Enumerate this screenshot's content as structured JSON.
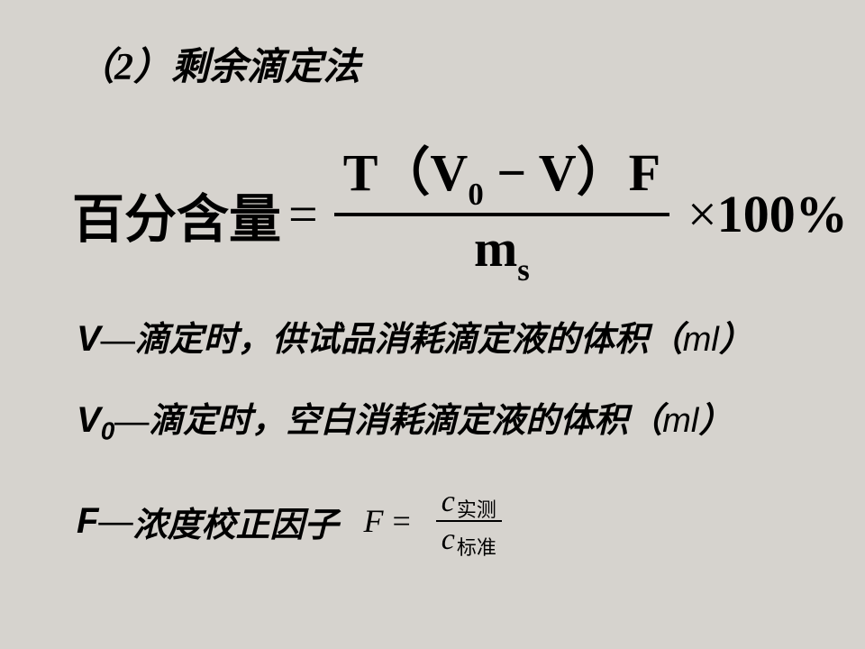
{
  "heading": "（2）剩余滴定法",
  "formula": {
    "lhs": "百分含量",
    "eq": "=",
    "numerator_prefix": "T（V",
    "numerator_sub": "0",
    "numerator_mid": " − V）F",
    "denominator_m": "m",
    "denominator_sub": "s",
    "times": "×",
    "hundred": "100",
    "percent": "%"
  },
  "defs": {
    "v": {
      "sym": "V",
      "sub": "",
      "dash": "—",
      "text": "滴定时，供试品消耗滴定液的体积（",
      "unit": "ml",
      "close": "）"
    },
    "v0": {
      "sym": "V",
      "sub": "0",
      "dash": "—",
      "text": "滴定时，空白消耗滴定液的体积（",
      "unit": "ml",
      "close": "）"
    },
    "f": {
      "sym": "F",
      "dash": "—",
      "text": "浓度校正因子",
      "frac": {
        "F": "F",
        "eq": "=",
        "c": "c",
        "num_sub": "实测",
        "den_sub": "标准"
      }
    }
  }
}
